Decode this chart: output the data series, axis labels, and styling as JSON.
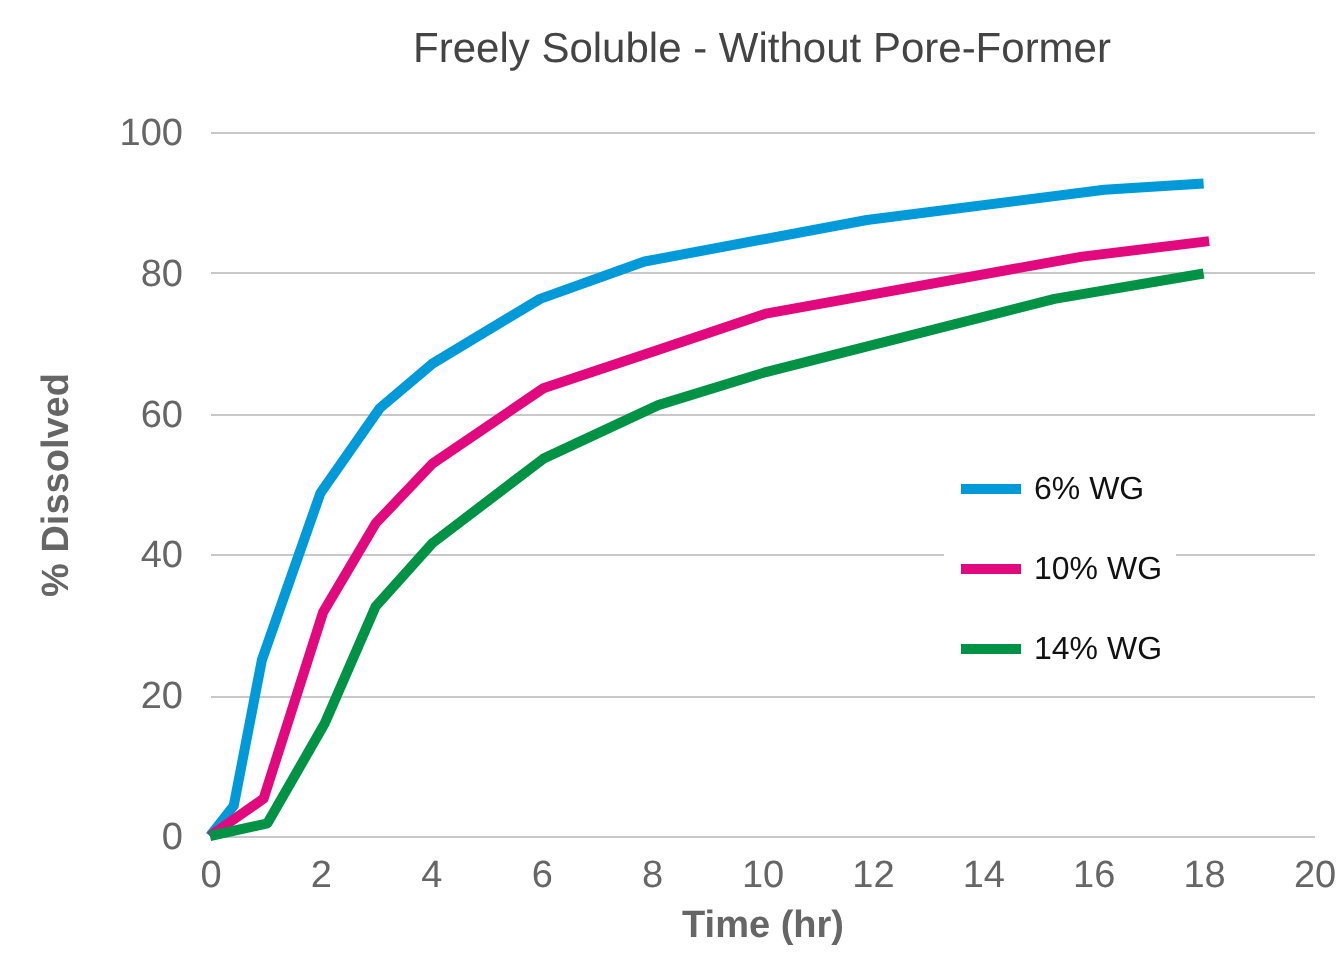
{
  "chart_data": {
    "type": "line",
    "title": "Freely Soluble - Without Pore-Former",
    "xlabel": "Time (hr)",
    "ylabel": "% Dissolved",
    "xlim": [
      0,
      20
    ],
    "xticks": [
      0,
      2,
      4,
      6,
      8,
      10,
      12,
      14,
      16,
      18,
      20
    ],
    "ylim": [
      0,
      100
    ],
    "yticks": [
      0,
      20,
      40,
      60,
      80,
      100
    ],
    "grid": "y",
    "legend": "right",
    "line_style": "solid",
    "series": [
      {
        "name": "6% WG",
        "color": "#009ad9",
        "x": [
          0,
          0.43,
          0.94,
          2.0,
          3.08,
          4.03,
          5.98,
          7.87,
          11.9,
          16.2,
          18
        ],
        "values": [
          0,
          4.3,
          25,
          48.7,
          60.8,
          67.1,
          76.3,
          81.6,
          87.5,
          91.8,
          92.7
        ]
      },
      {
        "name": "10% WG",
        "color": "#e2097f",
        "x": [
          0,
          0.97,
          2.05,
          3.0,
          4.03,
          6.04,
          8.1,
          10.07,
          15.8,
          18.1
        ],
        "values": [
          0,
          5.3,
          31.8,
          44.4,
          52.9,
          63.6,
          69,
          74.2,
          82.3,
          84.5
        ]
      },
      {
        "name": "14% WG",
        "color": "#009245",
        "x": [
          0,
          1.04,
          2.08,
          3.0,
          4.03,
          6.04,
          8.12,
          10.07,
          15.3,
          18
        ],
        "values": [
          0,
          1.8,
          16,
          32.6,
          41.6,
          53.6,
          61.2,
          65.9,
          76.3,
          79.9
        ]
      }
    ]
  }
}
